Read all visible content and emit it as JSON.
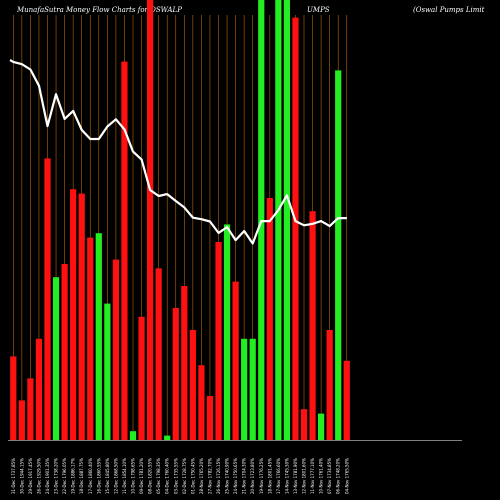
{
  "header": {
    "site": "MunafaSutra  Money Flow  Charts for OSWALP",
    "middle": "UMPS",
    "right": "(Oswal Pumps Limit"
  },
  "chart_data": {
    "type": "bar",
    "colors": {
      "up": "#22ee22",
      "down": "#ff1111",
      "line": "#ffffff",
      "grid": "#b8650a",
      "background": "#000000"
    },
    "ylim": [
      0,
      100
    ],
    "bars": [
      {
        "v": 19,
        "c": "down",
        "label": "31-Dec 1737.85%"
      },
      {
        "v": 9,
        "c": "down",
        "label": "30-Dec 1944.15%"
      },
      {
        "v": 14,
        "c": "down",
        "label": "29-Dec 1917.45%"
      },
      {
        "v": 23,
        "c": "down",
        "label": "26-Dec 1929.50%"
      },
      {
        "v": 64,
        "c": "down",
        "label": "24-Dec 1901.35%"
      },
      {
        "v": 37,
        "c": "up",
        "label": "23-Dec 1738.20%"
      },
      {
        "v": 40,
        "c": "down",
        "label": "22-Dec 1796.05%"
      },
      {
        "v": 57,
        "c": "down",
        "label": "19-Dec 1886.17%"
      },
      {
        "v": 56,
        "c": "down",
        "label": "18-Dec 1887.75%"
      },
      {
        "v": 46,
        "c": "down",
        "label": "17-Dec 1860.40%"
      },
      {
        "v": 47,
        "c": "up",
        "label": "16-Dec 1860.55%"
      },
      {
        "v": 31,
        "c": "up",
        "label": "15-Dec 1845.80%"
      },
      {
        "v": 41,
        "c": "down",
        "label": "12-Dec 1868.50%"
      },
      {
        "v": 86,
        "c": "down",
        "label": "11-Dec 1854.10%"
      },
      {
        "v": 2,
        "c": "up",
        "label": "10-Dec 1798.65%"
      },
      {
        "v": 28,
        "c": "down",
        "label": "09-Dec 1781.20%"
      },
      {
        "v": 100,
        "c": "down",
        "label": "08-Dec 1820.55%"
      },
      {
        "v": 39,
        "c": "down",
        "label": "05-Dec 1798.35%"
      },
      {
        "v": 1,
        "c": "up",
        "label": "04-Dec 1760.40%"
      },
      {
        "v": 30,
        "c": "down",
        "label": "03-Dec 1735.55%"
      },
      {
        "v": 35,
        "c": "down",
        "label": "02-Dec 1728.75%"
      },
      {
        "v": 25,
        "c": "down",
        "label": "01-Dec 1750.45%"
      },
      {
        "v": 17,
        "c": "down",
        "label": "28-Nov 1765.20%"
      },
      {
        "v": 10,
        "c": "down",
        "label": "27-Nov 1782.70%"
      },
      {
        "v": 45,
        "c": "down",
        "label": "26-Nov 1726.15%"
      },
      {
        "v": 49,
        "c": "up",
        "label": "25-Nov 1740.90%"
      },
      {
        "v": 36,
        "c": "down",
        "label": "24-Nov 1750.65%"
      },
      {
        "v": 23,
        "c": "up",
        "label": "21-Nov 1704.30%"
      },
      {
        "v": 23,
        "c": "up",
        "label": "20-Nov 1723.80%"
      },
      {
        "v": 100,
        "c": "up",
        "label": "19-Nov 1776.25%"
      },
      {
        "v": 55,
        "c": "down",
        "label": "18-Nov 1801.45%"
      },
      {
        "v": 100,
        "c": "up",
        "label": "17-Nov 1766.60%"
      },
      {
        "v": 100,
        "c": "up",
        "label": "14-Nov 1745.30%"
      },
      {
        "v": 96,
        "c": "down",
        "label": "13-Nov 1781.90%"
      },
      {
        "v": 7,
        "c": "down",
        "label": "12-Nov 1801.60%"
      },
      {
        "v": 52,
        "c": "down",
        "label": "11-Nov 1777.10%"
      },
      {
        "v": 6,
        "c": "up",
        "label": "10-Nov 1761.40%"
      },
      {
        "v": 25,
        "c": "down",
        "label": "07-Nov 1734.85%"
      },
      {
        "v": 84,
        "c": "up",
        "label": "06-Nov 1748.20%"
      },
      {
        "v": 18,
        "c": "down",
        "label": "04-Nov 1765.50%"
      }
    ],
    "line": [
      100,
      99.5,
      98.9,
      97.5,
      93.2,
      82.6,
      91,
      84.5,
      86.6,
      81.6,
      79.2,
      79.2,
      82.5,
      84.4,
      81.7,
      75.9,
      73.8,
      65.8,
      64.2,
      64.7,
      62.9,
      61.2,
      58.5,
      58.1,
      57.5,
      54.5,
      56,
      52.6,
      55,
      51.7,
      57.6,
      57.6,
      60.5,
      64.4,
      57.6,
      56.5,
      56.9,
      57.6,
      56.3,
      58.4,
      58.4
    ]
  }
}
